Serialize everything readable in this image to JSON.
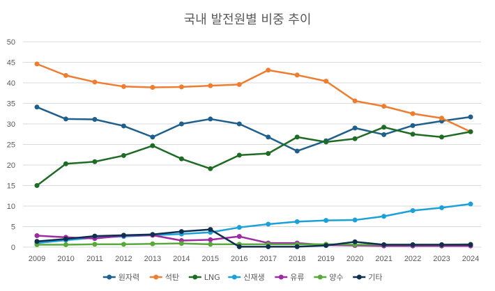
{
  "chart_data": {
    "type": "line",
    "title": "국내 발전원별 비중 추이",
    "xlabel": "",
    "ylabel": "",
    "ylim": [
      0,
      50
    ],
    "yticks": [
      0,
      5,
      10,
      15,
      20,
      25,
      30,
      35,
      40,
      45,
      50
    ],
    "grid": true,
    "legend_position": "bottom",
    "categories": [
      "2009",
      "2010",
      "2011",
      "2012",
      "2013",
      "2014",
      "2015",
      "2016",
      "2017",
      "2018",
      "2019",
      "2020",
      "2021",
      "2022",
      "2023",
      "2024"
    ],
    "series": [
      {
        "name": "원자력",
        "color": "#1f5f8b",
        "values": [
          34.1,
          31.2,
          31.1,
          29.5,
          26.8,
          30.0,
          31.2,
          30.0,
          26.8,
          23.4,
          25.9,
          29.0,
          27.4,
          29.6,
          30.7,
          31.7
        ]
      },
      {
        "name": "석탄",
        "color": "#ed7d31",
        "values": [
          44.6,
          41.8,
          40.2,
          39.1,
          38.9,
          39.0,
          39.3,
          39.6,
          43.1,
          41.9,
          40.4,
          35.6,
          34.3,
          32.5,
          31.4,
          28.1
        ]
      },
      {
        "name": "LNG",
        "color": "#1e6b24",
        "values": [
          15.0,
          20.3,
          20.8,
          22.3,
          24.7,
          21.5,
          19.1,
          22.4,
          22.8,
          26.8,
          25.6,
          26.4,
          29.2,
          27.5,
          26.8,
          28.1
        ]
      },
      {
        "name": "신재생",
        "color": "#1ba1d8",
        "values": [
          1.0,
          1.7,
          2.3,
          2.6,
          2.9,
          3.2,
          3.6,
          4.8,
          5.6,
          6.2,
          6.5,
          6.6,
          7.5,
          8.9,
          9.6,
          10.5
        ]
      },
      {
        "name": "유류",
        "color": "#9e2ba0",
        "values": [
          2.8,
          2.4,
          2.1,
          2.8,
          2.9,
          1.6,
          1.8,
          2.6,
          1.0,
          1.0,
          0.5,
          0.4,
          0.3,
          0.3,
          0.3,
          0.3
        ]
      },
      {
        "name": "양수",
        "color": "#58a83a",
        "values": [
          0.6,
          0.6,
          0.7,
          0.7,
          0.8,
          0.9,
          0.7,
          0.7,
          0.7,
          0.7,
          0.7,
          0.6,
          0.6,
          0.6,
          0.6,
          0.7
        ]
      },
      {
        "name": "기타",
        "color": "#0f2f4f",
        "values": [
          1.4,
          2.0,
          2.7,
          2.9,
          3.1,
          3.8,
          4.3,
          0.1,
          0.1,
          0.1,
          0.4,
          1.3,
          0.6,
          0.6,
          0.6,
          0.6
        ]
      }
    ]
  }
}
